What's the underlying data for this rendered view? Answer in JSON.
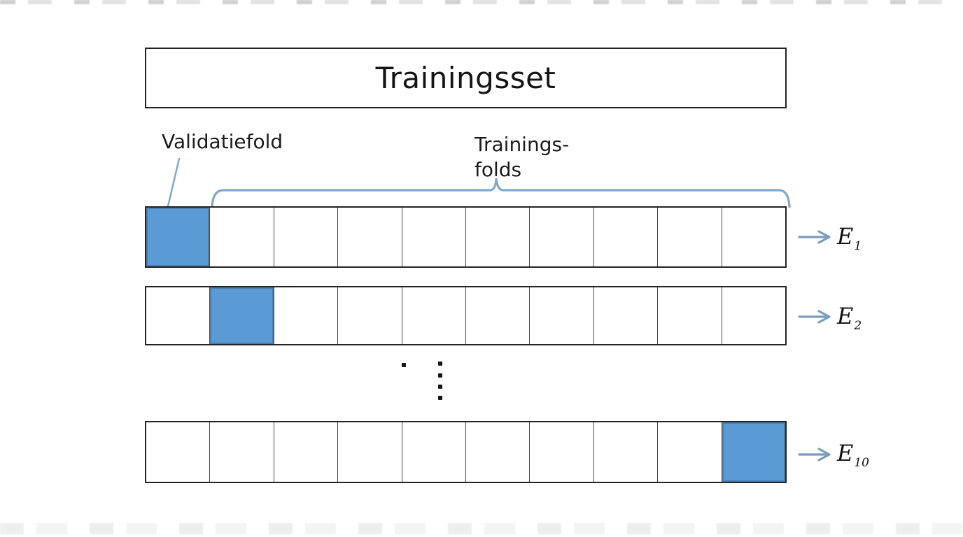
{
  "title": "Trainingsset",
  "annotations": {
    "validation_label": "Validatiefold",
    "training_label_line1": "Trainings-",
    "training_label_line2": "folds"
  },
  "diagram": {
    "num_folds": 10,
    "rows": [
      {
        "highlight_index": 0,
        "result_letter": "E",
        "result_subscript": "1"
      },
      {
        "highlight_index": 1,
        "result_letter": "E",
        "result_subscript": "2"
      },
      {
        "highlight_index": 9,
        "result_letter": "E",
        "result_subscript": "10"
      }
    ]
  },
  "colors": {
    "validation_fill": "#5b9bd5",
    "validation_border": "#4a7dad",
    "brace_accent": "#7fa8cb",
    "leader_line": "#7fa8cb",
    "arrow": "#7a9bbd",
    "box_border": "#232323"
  }
}
